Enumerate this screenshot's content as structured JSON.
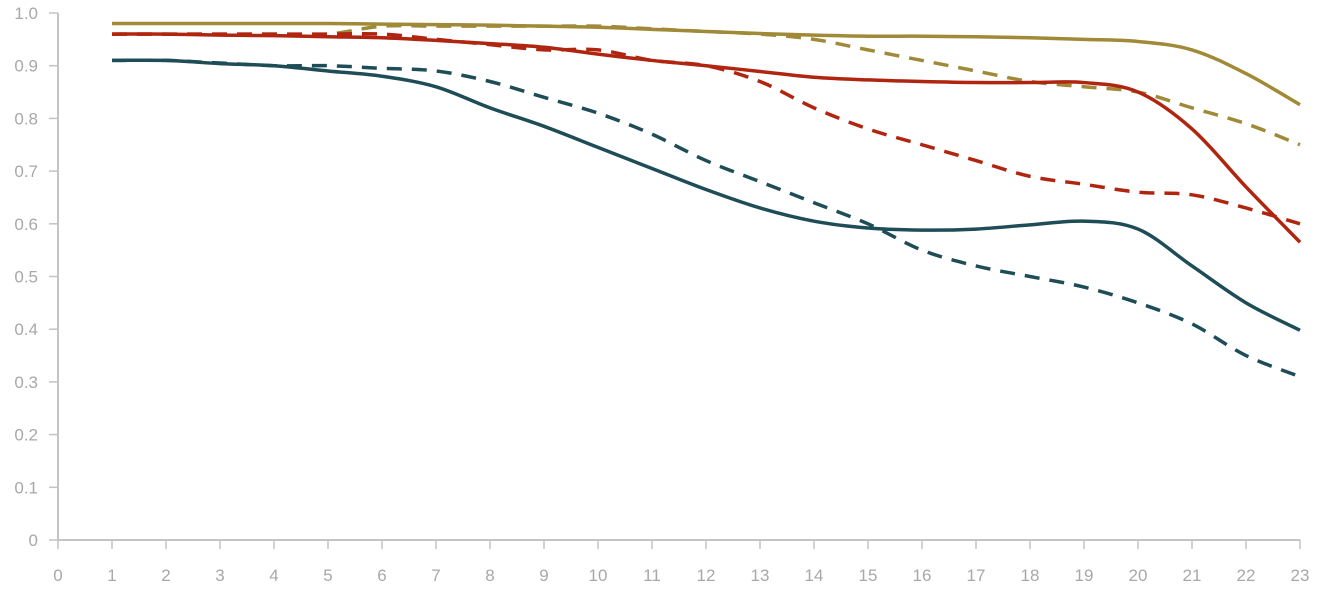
{
  "chart_data": {
    "type": "line",
    "title": "",
    "xlabel": "",
    "ylabel": "",
    "xlim": [
      0,
      23
    ],
    "ylim": [
      0,
      1.0
    ],
    "grid": false,
    "x_ticks": [
      "0",
      "1",
      "2",
      "3",
      "4",
      "5",
      "6",
      "7",
      "8",
      "9",
      "10",
      "11",
      "12",
      "13",
      "14",
      "15",
      "16",
      "17",
      "18",
      "19",
      "20",
      "21",
      "22",
      "23"
    ],
    "y_ticks": [
      "0",
      "0.1",
      "0.2",
      "0.3",
      "0.4",
      "0.5",
      "0.6",
      "0.7",
      "0.8",
      "0.9",
      "1.0"
    ],
    "x": [
      1,
      2,
      3,
      4,
      5,
      6,
      7,
      8,
      9,
      10,
      11,
      12,
      13,
      14,
      15,
      16,
      17,
      18,
      19,
      20,
      21,
      22,
      23
    ],
    "series": [
      {
        "color": "#a08a38",
        "dash": false,
        "values": [
          0.98,
          0.98,
          0.98,
          0.98,
          0.98,
          0.979,
          0.978,
          0.977,
          0.975,
          0.973,
          0.969,
          0.965,
          0.961,
          0.958,
          0.956,
          0.956,
          0.955,
          0.953,
          0.95,
          0.946,
          0.93,
          0.885,
          0.826
        ]
      },
      {
        "color": "#a08a38",
        "dash": true,
        "values": [
          0.96,
          0.96,
          0.96,
          0.96,
          0.96,
          0.975,
          0.975,
          0.975,
          0.975,
          0.975,
          0.97,
          0.965,
          0.96,
          0.95,
          0.93,
          0.91,
          0.89,
          0.87,
          0.86,
          0.85,
          0.82,
          0.79,
          0.75
        ]
      },
      {
        "color": "#b02510",
        "dash": false,
        "values": [
          0.96,
          0.96,
          0.958,
          0.957,
          0.955,
          0.953,
          0.948,
          0.942,
          0.935,
          0.922,
          0.91,
          0.9,
          0.889,
          0.878,
          0.873,
          0.87,
          0.868,
          0.868,
          0.868,
          0.85,
          0.78,
          0.67,
          0.565
        ]
      },
      {
        "color": "#b02510",
        "dash": true,
        "values": [
          0.96,
          0.96,
          0.96,
          0.96,
          0.96,
          0.96,
          0.95,
          0.94,
          0.93,
          0.93,
          0.91,
          0.9,
          0.87,
          0.82,
          0.78,
          0.75,
          0.72,
          0.69,
          0.675,
          0.66,
          0.655,
          0.63,
          0.6
        ]
      },
      {
        "color": "#1e4d57",
        "dash": false,
        "values": [
          0.91,
          0.91,
          0.904,
          0.9,
          0.89,
          0.88,
          0.86,
          0.82,
          0.785,
          0.745,
          0.705,
          0.665,
          0.63,
          0.605,
          0.592,
          0.588,
          0.59,
          0.598,
          0.605,
          0.59,
          0.52,
          0.45,
          0.398
        ]
      },
      {
        "color": "#1e4d57",
        "dash": true,
        "values": [
          0.91,
          0.91,
          0.905,
          0.9,
          0.9,
          0.895,
          0.89,
          0.87,
          0.84,
          0.81,
          0.77,
          0.72,
          0.68,
          0.64,
          0.6,
          0.55,
          0.52,
          0.5,
          0.48,
          0.45,
          0.41,
          0.35,
          0.31
        ]
      }
    ]
  }
}
